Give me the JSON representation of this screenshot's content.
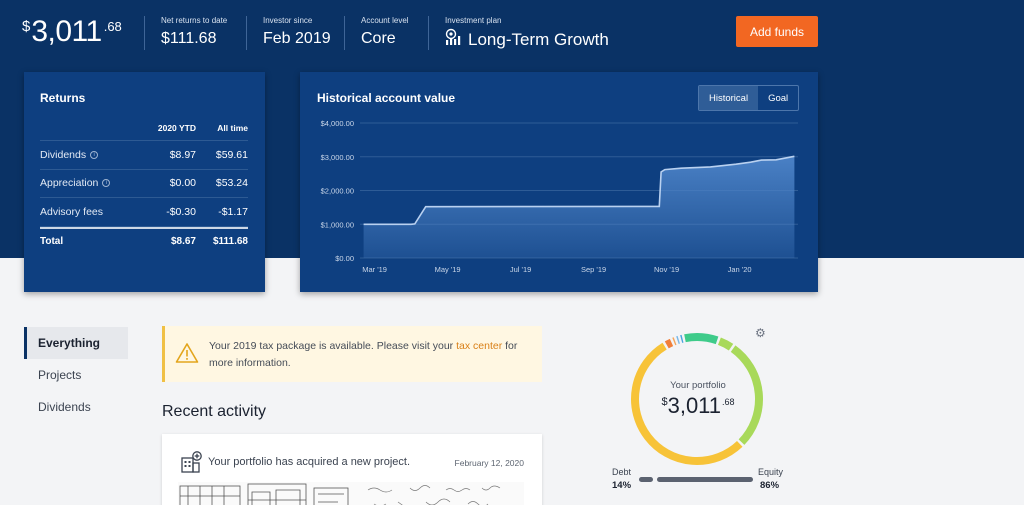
{
  "header": {
    "balance": {
      "currency": "$",
      "whole": "3,011",
      "cents": ".68"
    },
    "stats": [
      {
        "label": "Net returns to date",
        "value": "$111.68"
      },
      {
        "label": "Investor since",
        "value": "Feb 2019"
      },
      {
        "label": "Account level",
        "value": "Core"
      },
      {
        "label": "Investment plan",
        "value": "Long-Term Growth"
      }
    ],
    "add_funds_label": "Add funds"
  },
  "returns": {
    "title": "Returns",
    "columns": [
      "",
      "2020 YTD",
      "All time"
    ],
    "rows": [
      {
        "label": "Dividends",
        "ytd": "$8.97",
        "all": "$59.61",
        "info": true
      },
      {
        "label": "Appreciation",
        "ytd": "$0.00",
        "all": "$53.24",
        "info": true
      },
      {
        "label": "Advisory fees",
        "ytd": "-$0.30",
        "all": "-$1.17",
        "info": false
      }
    ],
    "total": {
      "label": "Total",
      "ytd": "$8.67",
      "all": "$111.68"
    }
  },
  "history": {
    "title": "Historical account value",
    "toggle": [
      "Historical",
      "Goal"
    ],
    "active_toggle": "Historical"
  },
  "chart_data": {
    "type": "area",
    "title": "Historical account value",
    "ylim": [
      0,
      4000
    ],
    "y_ticks": [
      "$0.00",
      "$1,000.00",
      "$2,000.00",
      "$3,000.00",
      "$4,000.00"
    ],
    "x_ticks": [
      "Mar '19",
      "May '19",
      "Jul '19",
      "Sep '19",
      "Nov '19",
      "Jan '20"
    ],
    "x_tick_values": [
      2,
      4,
      6,
      8,
      10,
      12
    ],
    "series": [
      {
        "x": [
          1.7,
          3.0,
          3.1,
          3.4,
          9.8,
          9.85,
          9.95,
          10.4,
          11.2,
          11.9,
          12.3,
          12.6,
          13.0,
          13.5
        ],
        "y": [
          1000,
          1000,
          1010,
          1520,
          1530,
          2550,
          2620,
          2660,
          2700,
          2780,
          2840,
          2900,
          2910,
          3012
        ]
      }
    ],
    "grid": true,
    "colors": {
      "line": "#b9d1f0",
      "fill": "#4d84c9"
    }
  },
  "filters": [
    "Everything",
    "Projects",
    "Dividends"
  ],
  "active_filter": "Everything",
  "notice": {
    "text_before": "Your 2019 tax package is available. Please visit your ",
    "link": "tax center",
    "text_after": " for more information."
  },
  "recent_activity": {
    "title": "Recent activity",
    "items": [
      {
        "message": "Your portfolio has acquired a new project.",
        "date": "February 12, 2020"
      }
    ]
  },
  "portfolio": {
    "label": "Your portfolio",
    "currency": "$",
    "whole": "3,011",
    "cents": ".68",
    "debt_label": "Debt",
    "debt_pct": "14%",
    "equity_label": "Equity",
    "equity_pct": "86%",
    "segments": [
      {
        "value": 4,
        "color": "#a8d95a"
      },
      {
        "value": 28,
        "color": "#a8d95a"
      },
      {
        "value": 54,
        "color": "#f7c338"
      },
      {
        "value": 2,
        "color": "#f07f3a"
      },
      {
        "value": 1,
        "color": "#f5a65b"
      },
      {
        "value": 1,
        "color": "#7ab8e8"
      },
      {
        "value": 1,
        "color": "#4aa3df"
      },
      {
        "value": 9,
        "color": "#3ecb8a"
      }
    ]
  }
}
